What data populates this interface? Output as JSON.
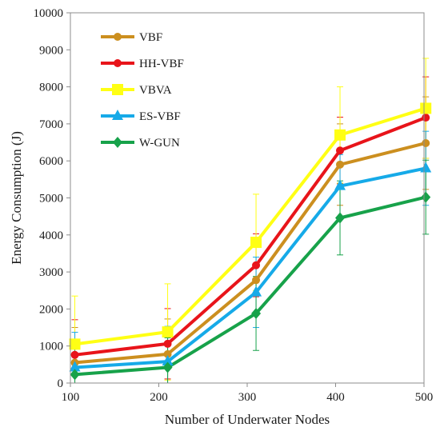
{
  "chart_data": {
    "type": "line",
    "title": "",
    "xlabel": "Number of Underwater Nodes",
    "ylabel": "Energy Consumption (J)",
    "x": [
      100,
      200,
      300,
      400,
      500
    ],
    "x_positions": [
      105,
      210,
      310,
      405,
      502
    ],
    "xlim": [
      100,
      500
    ],
    "ylim": [
      0,
      10000
    ],
    "x_ticks": [
      "100",
      "200",
      "300",
      "400",
      "500"
    ],
    "y_ticks": [
      "0",
      "1000",
      "2000",
      "3000",
      "4000",
      "5000",
      "6000",
      "7000",
      "8000",
      "9000",
      "10000"
    ],
    "legend_position": "top-left",
    "grid": false,
    "series": [
      {
        "name": "VBF",
        "color": "#cc8f1f",
        "marker": "circle",
        "values": [
          550,
          780,
          2780,
          5900,
          6480
        ],
        "errors": [
          950,
          950,
          950,
          1100,
          1250
        ]
      },
      {
        "name": "HH-VBF",
        "color": "#e8141a",
        "marker": "circle",
        "values": [
          760,
          1060,
          3180,
          6280,
          7170
        ],
        "errors": [
          950,
          950,
          850,
          900,
          1100
        ]
      },
      {
        "name": "VBVA",
        "color": "#ffff14",
        "marker": "square",
        "values": [
          1050,
          1380,
          3800,
          6700,
          7420
        ],
        "errors": [
          1300,
          1300,
          1300,
          1300,
          1350
        ]
      },
      {
        "name": "ES-VBF",
        "color": "#16aae8",
        "marker": "triangle",
        "values": [
          420,
          580,
          2450,
          5320,
          5800
        ],
        "errors": [
          950,
          950,
          950,
          850,
          1000
        ]
      },
      {
        "name": "W-GUN",
        "color": "#17a24a",
        "marker": "diamond",
        "values": [
          230,
          420,
          1880,
          4460,
          5020
        ],
        "errors": [
          800,
          800,
          1000,
          1000,
          1000
        ]
      }
    ]
  }
}
